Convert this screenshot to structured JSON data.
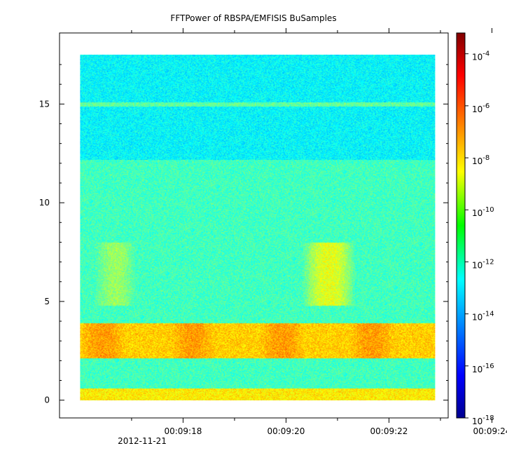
{
  "chart_data": {
    "type": "heatmap",
    "title": "FFTPower of RBSPA/EMFISIS  BuSamples",
    "xlabel": "",
    "ylabel": "",
    "date_label": "2012-11-21",
    "x_ticks": [
      "00:09:18",
      "00:09:20",
      "00:09:22",
      "00:09:24"
    ],
    "x_range_seconds": [
      555.6,
      563.15
    ],
    "data_x_range_seconds": [
      556.0,
      562.9
    ],
    "y_ticks": [
      0,
      5,
      10,
      15
    ],
    "ylim": [
      -0.9,
      18.6
    ],
    "data_y_range": [
      0,
      17.5
    ],
    "colorbar": {
      "scale": "log",
      "range": [
        "1e-18",
        "1e-3.2"
      ],
      "tick_bases": [
        "10",
        "10",
        "10",
        "10",
        "10",
        "10",
        "10",
        "10"
      ],
      "tick_exponents": [
        "-4",
        "-6",
        "-8",
        "-10",
        "-12",
        "-14",
        "-16",
        "-18"
      ]
    },
    "features": [
      {
        "name": "background",
        "y_range": [
          0,
          17.5
        ],
        "log_power": -11.5
      },
      {
        "name": "upper band",
        "y_range": [
          12.2,
          17.5
        ],
        "log_power": -12.5
      },
      {
        "name": "line at 15",
        "y_range": [
          14.9,
          15.1
        ],
        "log_power": -11.0
      },
      {
        "name": "strong band",
        "y_range": [
          2.1,
          3.9
        ],
        "log_power": -7.3
      },
      {
        "name": "bursts",
        "y_range": [
          4.8,
          8.0
        ],
        "log_power": -9.0
      },
      {
        "name": "low frequency",
        "y_range": [
          0,
          0.6
        ],
        "log_power": -8.5
      }
    ],
    "colors": {
      "jet_dark_blue": "#00008f",
      "jet_blue": "#0000ff",
      "jet_cyan": "#00ffff",
      "jet_green": "#00ff00",
      "jet_yellow": "#ffff00",
      "jet_red": "#ff0000",
      "jet_dark_red": "#800000"
    },
    "grid": false,
    "legend": "colorbar-right"
  }
}
